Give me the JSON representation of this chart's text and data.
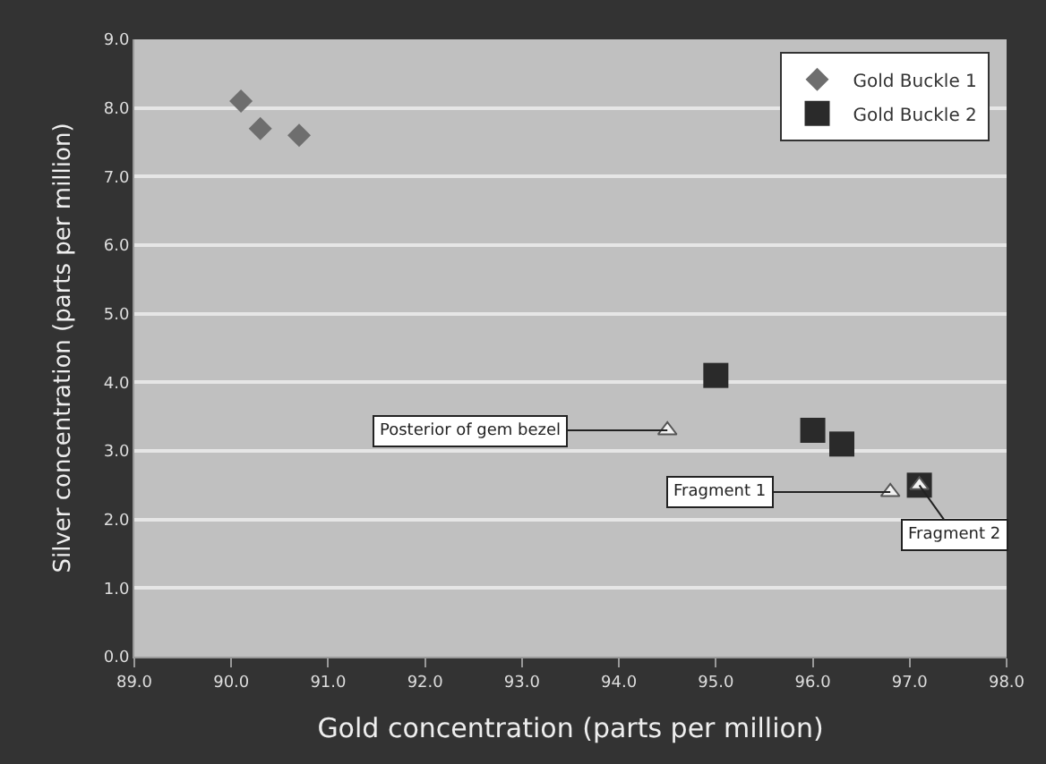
{
  "chart_data": {
    "type": "scatter",
    "xlabel": "Gold concentration (parts per million)",
    "ylabel": "Silver concentration (parts per million)",
    "xlim": [
      89.0,
      98.0
    ],
    "xticks": [
      {
        "value": 89,
        "label": "89.0"
      },
      {
        "value": 90,
        "label": "90.0"
      },
      {
        "value": 91,
        "label": "91.0"
      },
      {
        "value": 92,
        "label": "92.0"
      },
      {
        "value": 93,
        "label": "93.0"
      },
      {
        "value": 94,
        "label": "94.0"
      },
      {
        "value": 95,
        "label": "95.0"
      },
      {
        "value": 96,
        "label": "96.0"
      },
      {
        "value": 97,
        "label": "97.0"
      },
      {
        "value": 98,
        "label": "98.0"
      }
    ],
    "ylim": [
      0.0,
      9.0
    ],
    "yticks": [
      {
        "value": 0,
        "label": "0.0"
      },
      {
        "value": 1,
        "label": "1.0"
      },
      {
        "value": 2,
        "label": "2.0"
      },
      {
        "value": 3,
        "label": "3.0"
      },
      {
        "value": 4,
        "label": "4.0"
      },
      {
        "value": 5,
        "label": "5.0"
      },
      {
        "value": 6,
        "label": "6.0"
      },
      {
        "value": 7,
        "label": "7.0"
      },
      {
        "value": 8,
        "label": "8.0"
      },
      {
        "value": 9,
        "label": "9.0"
      }
    ],
    "grid": "y",
    "legend": "top right",
    "series": [
      {
        "name": "Gold Buckle 1",
        "color": "#6e6e6e",
        "marker": "diamond",
        "x": [
          90.1,
          90.3,
          90.7
        ],
        "values": [
          8.1,
          7.7,
          7.6
        ]
      },
      {
        "name": "Gold Buckle 2",
        "color": "#2a2a2a",
        "marker": "square",
        "x": [
          95.0,
          96.0,
          96.3,
          97.1
        ],
        "values": [
          4.1,
          3.3,
          3.1,
          2.5
        ]
      },
      {
        "color": "#f2f2f2",
        "marker": "triangle",
        "x": [
          94.5,
          96.8,
          97.1
        ],
        "values": [
          3.3,
          2.4,
          2.5
        ]
      }
    ],
    "annotations": [
      {
        "text": "Posterior of gem bezel",
        "x": 94.5,
        "y": 3.3
      },
      {
        "text": "Fragment 1",
        "x": 96.8,
        "y": 2.4
      },
      {
        "text": "Fragment 2",
        "x": 97.1,
        "y": 2.5
      }
    ]
  }
}
